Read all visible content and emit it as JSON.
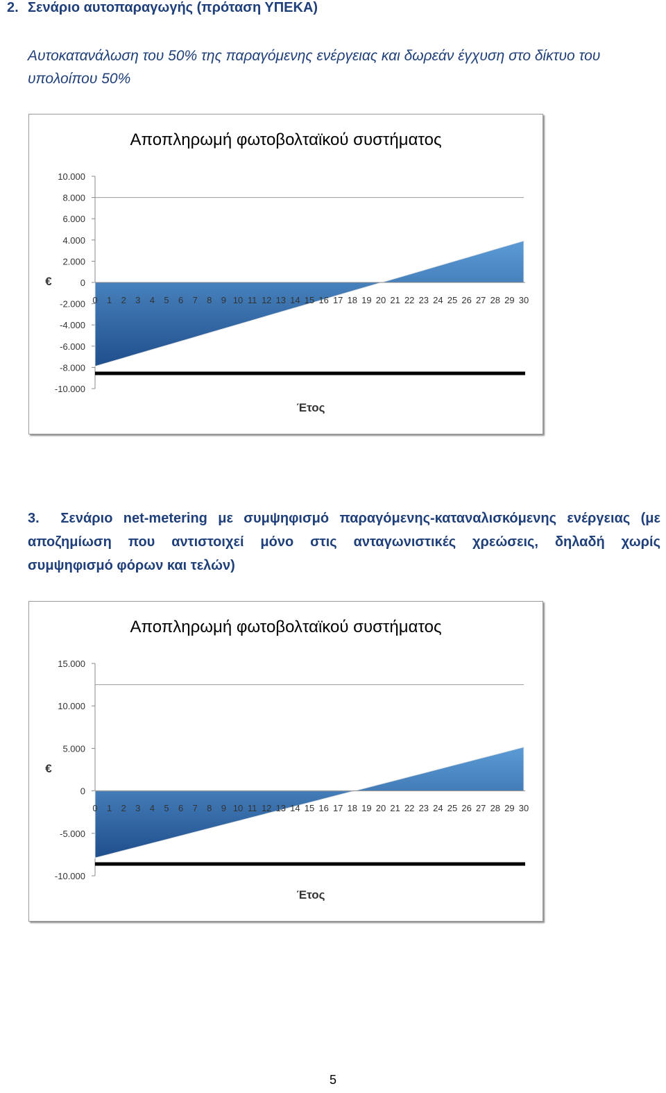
{
  "section2": {
    "number": "2.",
    "title": "Σενάριο αυτοπαραγωγής (πρόταση ΥΠΕΚΑ)",
    "subtitle": "Αυτοκατανάλωση του 50% της παραγόμενης ενέργειας και δωρεάν έγχυση στο δίκτυο του υπολοίπου 50%"
  },
  "section3": {
    "number": "3.",
    "line1": "Σενάριο net-metering με συμψηφισμό παραγόμενης-καταναλισκόμενης ενέργειας (με",
    "line2": "αποζημίωση που αντιστοιχεί μόνο στις ανταγωνιστικές χρεώσεις, δηλαδή χωρίς",
    "line3": "συμψηφισμό φόρων και τελών)"
  },
  "page_number": "5",
  "colors": {
    "accent": "#1f3f7a",
    "area_light": "#5b9bd5",
    "area_dark": "#1f4e8c"
  },
  "chart_data": [
    {
      "type": "area",
      "title": "Αποπληρωμή φωτοβολταϊκού συστήματος",
      "xlabel": "Έτος",
      "ylabel": "€",
      "x": [
        0,
        1,
        2,
        3,
        4,
        5,
        6,
        7,
        8,
        9,
        10,
        11,
        12,
        13,
        14,
        15,
        16,
        17,
        18,
        19,
        20,
        21,
        22,
        23,
        24,
        25,
        26,
        27,
        28,
        29,
        30
      ],
      "values": [
        -7900,
        -7506,
        -7112,
        -6718,
        -6324,
        -5930,
        -5536,
        -5142,
        -4748,
        -4354,
        -3960,
        -3566,
        -3172,
        -2778,
        -2384,
        -1990,
        -1596,
        -1202,
        -808,
        -414,
        -20,
        374,
        768,
        1162,
        1556,
        1950,
        2344,
        2738,
        3132,
        3526,
        3920
      ],
      "ylim": [
        -10000,
        10000
      ],
      "y_ticks": [
        10000,
        8000,
        6000,
        4000,
        2000,
        0,
        -2000,
        -4000,
        -6000,
        -8000,
        -10000
      ],
      "y_tick_labels": [
        "10.000",
        "8.000",
        "6.000",
        "4.000",
        "2.000",
        "0",
        "-2.000",
        "-4.000",
        "-6.000",
        "-8.000",
        "-10.000"
      ],
      "gridlines_at": [
        8000
      ],
      "grid": false,
      "legend": "bottom"
    },
    {
      "type": "area",
      "title": "Αποπληρωμή φωτοβολταϊκού συστήματος",
      "xlabel": "Έτος",
      "ylabel": "€",
      "x": [
        0,
        1,
        2,
        3,
        4,
        5,
        6,
        7,
        8,
        9,
        10,
        11,
        12,
        13,
        14,
        15,
        16,
        17,
        18,
        19,
        20,
        21,
        22,
        23,
        24,
        25,
        26,
        27,
        28,
        29,
        30
      ],
      "values": [
        -7900,
        -7465,
        -7030,
        -6595,
        -6160,
        -5725,
        -5290,
        -4855,
        -4420,
        -3985,
        -3550,
        -3115,
        -2680,
        -2245,
        -1810,
        -1375,
        -940,
        -505,
        -70,
        365,
        800,
        1235,
        1670,
        2105,
        2540,
        2975,
        3410,
        3845,
        4280,
        4715,
        5150
      ],
      "ylim": [
        -10000,
        15000
      ],
      "y_ticks": [
        15000,
        10000,
        5000,
        0,
        -5000,
        -10000
      ],
      "y_tick_labels": [
        "15.000",
        "10.000",
        "5.000",
        "0",
        "-5.000",
        "-10.000"
      ],
      "gridlines_at": [
        12500
      ],
      "grid": false,
      "legend": "bottom"
    }
  ]
}
